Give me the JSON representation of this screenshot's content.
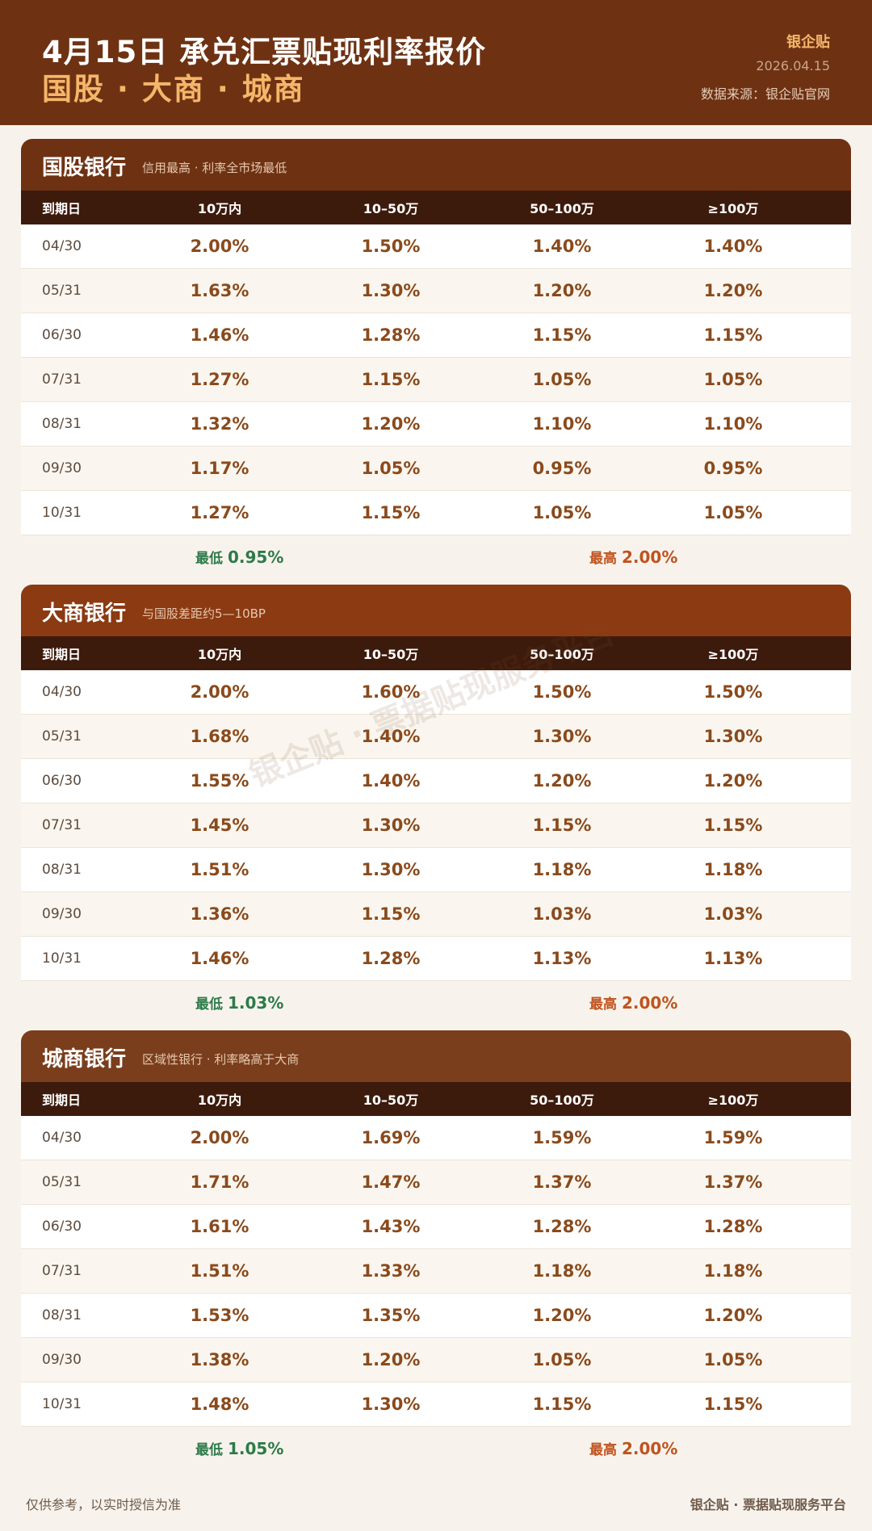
{
  "header": {
    "title": "4月15日 承兑汇票贴现利率报价",
    "subtitle": "国股 · 大商 · 城商",
    "brand": "银企贴",
    "date": "2026.04.15",
    "source": "数据来源：银企贴官网"
  },
  "columns": [
    "到期日",
    "10万内",
    "10–50万",
    "50–100万",
    "≥100万"
  ],
  "sections": [
    {
      "name": "国股银行",
      "note": "信用最高 · 利率全市场最低",
      "head_color": "#6e3213",
      "rows": [
        {
          "date": "04/30",
          "rates": [
            "2.00%",
            "1.50%",
            "1.40%",
            "1.40%"
          ]
        },
        {
          "date": "05/31",
          "rates": [
            "1.63%",
            "1.30%",
            "1.20%",
            "1.20%"
          ]
        },
        {
          "date": "06/30",
          "rates": [
            "1.46%",
            "1.28%",
            "1.15%",
            "1.15%"
          ]
        },
        {
          "date": "07/31",
          "rates": [
            "1.27%",
            "1.15%",
            "1.05%",
            "1.05%"
          ]
        },
        {
          "date": "08/31",
          "rates": [
            "1.32%",
            "1.20%",
            "1.10%",
            "1.10%"
          ]
        },
        {
          "date": "09/30",
          "rates": [
            "1.17%",
            "1.05%",
            "0.95%",
            "0.95%"
          ]
        },
        {
          "date": "10/31",
          "rates": [
            "1.27%",
            "1.15%",
            "1.05%",
            "1.05%"
          ]
        }
      ],
      "low_label": "最低",
      "low_value": "0.95%",
      "high_label": "最高",
      "high_value": "2.00%"
    },
    {
      "name": "大商银行",
      "note": "与国股差距约5—10BP",
      "head_color": "#8b3a12",
      "rows": [
        {
          "date": "04/30",
          "rates": [
            "2.00%",
            "1.60%",
            "1.50%",
            "1.50%"
          ]
        },
        {
          "date": "05/31",
          "rates": [
            "1.68%",
            "1.40%",
            "1.30%",
            "1.30%"
          ]
        },
        {
          "date": "06/30",
          "rates": [
            "1.55%",
            "1.40%",
            "1.20%",
            "1.20%"
          ]
        },
        {
          "date": "07/31",
          "rates": [
            "1.45%",
            "1.30%",
            "1.15%",
            "1.15%"
          ]
        },
        {
          "date": "08/31",
          "rates": [
            "1.51%",
            "1.30%",
            "1.18%",
            "1.18%"
          ]
        },
        {
          "date": "09/30",
          "rates": [
            "1.36%",
            "1.15%",
            "1.03%",
            "1.03%"
          ]
        },
        {
          "date": "10/31",
          "rates": [
            "1.46%",
            "1.28%",
            "1.13%",
            "1.13%"
          ]
        }
      ],
      "low_label": "最低",
      "low_value": "1.03%",
      "high_label": "最高",
      "high_value": "2.00%"
    },
    {
      "name": "城商银行",
      "note": "区域性银行 · 利率略高于大商",
      "head_color": "#7a3e1c",
      "rows": [
        {
          "date": "04/30",
          "rates": [
            "2.00%",
            "1.69%",
            "1.59%",
            "1.59%"
          ]
        },
        {
          "date": "05/31",
          "rates": [
            "1.71%",
            "1.47%",
            "1.37%",
            "1.37%"
          ]
        },
        {
          "date": "06/30",
          "rates": [
            "1.61%",
            "1.43%",
            "1.28%",
            "1.28%"
          ]
        },
        {
          "date": "07/31",
          "rates": [
            "1.51%",
            "1.33%",
            "1.18%",
            "1.18%"
          ]
        },
        {
          "date": "08/31",
          "rates": [
            "1.53%",
            "1.35%",
            "1.20%",
            "1.20%"
          ]
        },
        {
          "date": "09/30",
          "rates": [
            "1.38%",
            "1.20%",
            "1.05%",
            "1.05%"
          ]
        },
        {
          "date": "10/31",
          "rates": [
            "1.48%",
            "1.30%",
            "1.15%",
            "1.15%"
          ]
        }
      ],
      "low_label": "最低",
      "low_value": "1.05%",
      "high_label": "最高",
      "high_value": "2.00%"
    }
  ],
  "watermark": "银企贴 · 票据贴现服务平台",
  "footer": {
    "left": "仅供参考，以实时授信为准",
    "right": "银企贴 · 票据贴现服务平台"
  }
}
